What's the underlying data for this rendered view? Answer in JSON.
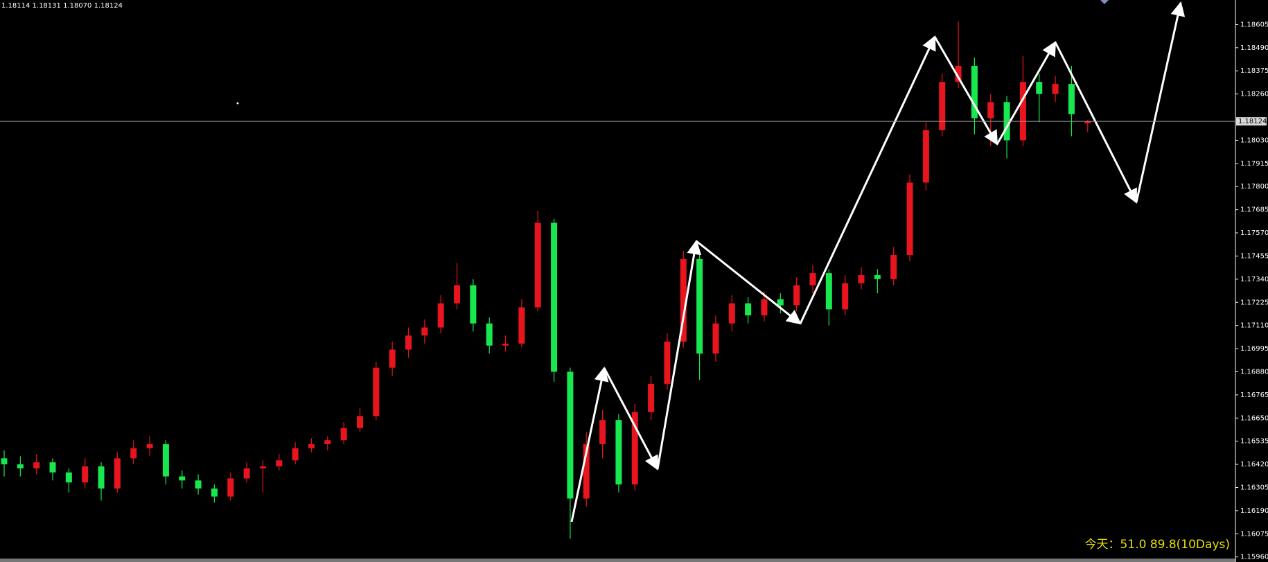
{
  "chart_data": {
    "type": "candlestick",
    "header": "1.18114 1.18131 1.18070 1.18124",
    "footer": "今天：51.0  89.8(10Days)",
    "up_color": "#e8141e",
    "down_color": "#18e850",
    "current_price": 1.18124,
    "ylim": [
      1.15952,
      1.18727
    ],
    "yticks": [
      1.18605,
      {
        "value": 1.1849,
        "label": "1.18490"
      },
      1.18375,
      {
        "value": 1.1826,
        "label": "1.18260"
      },
      {
        "value": 1.1803,
        "label": "1.18030"
      },
      1.17915,
      {
        "value": 1.178,
        "label": "1.17800"
      },
      1.17685,
      {
        "value": 1.1757,
        "label": "1.17570"
      },
      1.17455,
      {
        "value": 1.1734,
        "label": "1.17340"
      },
      1.17225,
      {
        "value": 1.1711,
        "label": "1.17110"
      },
      1.16995,
      {
        "value": 1.1688,
        "label": "1.16880"
      },
      1.16765,
      {
        "value": 1.1665,
        "label": "1.16650"
      },
      1.16535,
      {
        "value": 1.1642,
        "label": "1.16420"
      },
      1.16305,
      {
        "value": 1.1619,
        "label": "1.16190"
      },
      1.16075,
      {
        "value": 1.1596,
        "label": "1.15960"
      }
    ],
    "open": [
      1.1645,
      1.1642,
      1.164,
      1.1643,
      1.1638,
      1.1633,
      1.1641,
      1.163,
      1.1645,
      1.165,
      1.1652,
      1.1636,
      1.1634,
      1.163,
      1.1626,
      1.1635,
      1.164,
      1.1641,
      1.1644,
      1.165,
      1.1652,
      1.1654,
      1.166,
      1.1666,
      1.169,
      1.1699,
      1.1706,
      1.171,
      1.1722,
      1.1731,
      1.1712,
      1.1701,
      1.1702,
      1.172,
      1.1762,
      1.1688,
      1.1625,
      1.1652,
      1.1664,
      1.1632,
      1.1668,
      1.1682,
      1.1703,
      1.1744,
      1.1697,
      1.1712,
      1.1722,
      1.1716,
      1.1724,
      1.1721,
      1.1731,
      1.1737,
      1.1719,
      1.1732,
      1.1736,
      1.1734,
      1.1746,
      1.1782,
      1.1808,
      1.1832,
      1.184,
      1.1814,
      1.1822,
      1.1803,
      1.1832,
      1.1826,
      1.1831,
      1.18114
    ],
    "high": [
      1.1649,
      1.1646,
      1.1647,
      1.1645,
      1.164,
      1.1645,
      1.1643,
      1.1648,
      1.1654,
      1.1656,
      1.1654,
      1.1639,
      1.1637,
      1.1632,
      1.1638,
      1.1643,
      1.1644,
      1.1647,
      1.1653,
      1.1655,
      1.1656,
      1.1663,
      1.167,
      1.1693,
      1.1703,
      1.171,
      1.1714,
      1.1726,
      1.1742,
      1.1734,
      1.1715,
      1.1706,
      1.1724,
      1.1768,
      1.1764,
      1.169,
      1.1658,
      1.1669,
      1.1667,
      1.1672,
      1.1686,
      1.1707,
      1.1748,
      1.1746,
      1.1716,
      1.1726,
      1.1725,
      1.1728,
      1.1727,
      1.1735,
      1.1741,
      1.1739,
      1.1736,
      1.174,
      1.1739,
      1.175,
      1.1786,
      1.1812,
      1.1836,
      1.1862,
      1.1844,
      1.1826,
      1.1825,
      1.1845,
      1.1836,
      1.1835,
      1.184,
      1.18131
    ],
    "low": [
      1.1636,
      1.1636,
      1.1637,
      1.1634,
      1.1628,
      1.163,
      1.1624,
      1.1628,
      1.1642,
      1.1646,
      1.1632,
      1.163,
      1.1627,
      1.1623,
      1.1624,
      1.1633,
      1.1628,
      1.1639,
      1.1642,
      1.1648,
      1.1649,
      1.1652,
      1.1658,
      1.1664,
      1.1686,
      1.1695,
      1.1702,
      1.1707,
      1.1719,
      1.1708,
      1.1697,
      1.1698,
      1.17,
      1.1718,
      1.1683,
      1.1605,
      1.1621,
      1.1645,
      1.1628,
      1.1629,
      1.1664,
      1.1679,
      1.17,
      1.1684,
      1.1693,
      1.1708,
      1.1712,
      1.1713,
      1.1717,
      1.1718,
      1.1727,
      1.1711,
      1.1716,
      1.1729,
      1.1727,
      1.1731,
      1.1743,
      1.1778,
      1.1805,
      1.1829,
      1.1806,
      1.18,
      1.1794,
      1.18,
      1.1812,
      1.1822,
      1.1805,
      1.1807
    ],
    "close": [
      1.1642,
      1.164,
      1.1643,
      1.1638,
      1.1633,
      1.1641,
      1.163,
      1.1645,
      1.165,
      1.1652,
      1.1636,
      1.1634,
      1.163,
      1.1626,
      1.1635,
      1.164,
      1.1641,
      1.1644,
      1.165,
      1.1652,
      1.1654,
      1.166,
      1.1666,
      1.169,
      1.1699,
      1.1706,
      1.171,
      1.1722,
      1.1731,
      1.1712,
      1.1701,
      1.1702,
      1.172,
      1.1762,
      1.1688,
      1.1625,
      1.1652,
      1.1664,
      1.1632,
      1.1668,
      1.1682,
      1.1703,
      1.1744,
      1.1697,
      1.1712,
      1.1722,
      1.1716,
      1.1724,
      1.1721,
      1.1731,
      1.1737,
      1.1719,
      1.1732,
      1.1736,
      1.1734,
      1.1746,
      1.1782,
      1.1808,
      1.1832,
      1.184,
      1.1814,
      1.1822,
      1.1803,
      1.1832,
      1.1826,
      1.1831,
      1.1816,
      1.18124
    ]
  }
}
